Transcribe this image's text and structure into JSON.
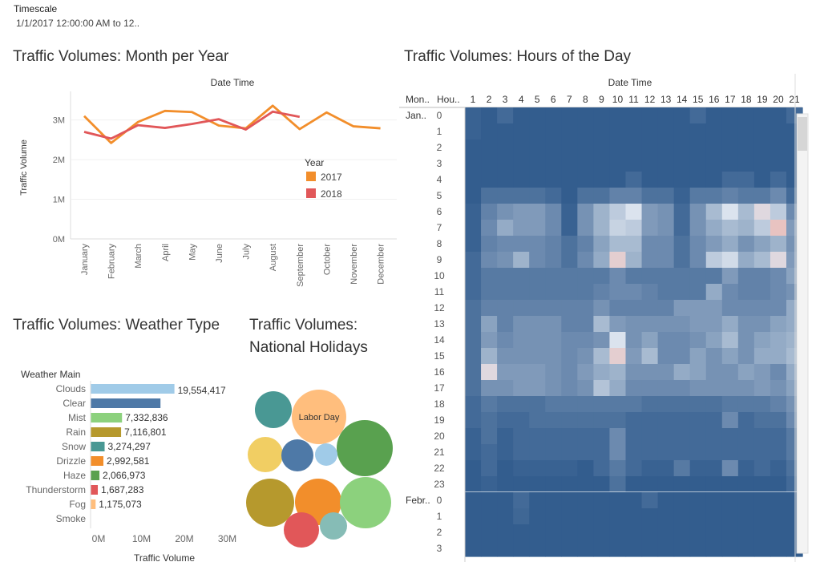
{
  "filter": {
    "title": "Timescale",
    "value": "1/1/2017 12:00:00 AM to 12.."
  },
  "titles": {
    "month": "Traffic Volumes: Month per Year",
    "hours": "Traffic Volumes: Hours of the Day",
    "weather": "Traffic Volumes: Weather Type",
    "holidays": "Traffic Volumes: National Holidays"
  },
  "colors": {
    "y2017": "#f28e2b",
    "y2018": "#e15759",
    "heat_dark": "#2f5a8c",
    "heat_light": "#dbe3ee",
    "heat_hot": "#e8c3c1"
  },
  "chart_data": [
    {
      "id": "month",
      "type": "line",
      "title": "Traffic Volumes: Month per Year",
      "xlabel": "Date Time",
      "ylabel": "Traffic Volume",
      "categories": [
        "January",
        "February",
        "March",
        "April",
        "May",
        "June",
        "July",
        "August",
        "September",
        "October",
        "November",
        "December"
      ],
      "ylim": [
        0,
        3600000
      ],
      "yticks": [
        0,
        1000000,
        2000000,
        3000000
      ],
      "ytick_labels": [
        "0M",
        "1M",
        "2M",
        "3M"
      ],
      "legend_title": "Year",
      "legend_position": "right",
      "series": [
        {
          "name": "2017",
          "color": "#f28e2b",
          "values": [
            3100000,
            2420000,
            2950000,
            3230000,
            3200000,
            2860000,
            2790000,
            3360000,
            2770000,
            3190000,
            2840000,
            2790000
          ]
        },
        {
          "name": "2018",
          "color": "#e15759",
          "values": [
            2700000,
            2530000,
            2870000,
            2800000,
            2900000,
            3020000,
            2760000,
            3210000,
            3080000,
            null,
            null,
            null
          ]
        }
      ]
    },
    {
      "id": "weather",
      "type": "bar",
      "orientation": "horizontal",
      "title": "Traffic Volumes: Weather Type",
      "category_header": "Weather Main",
      "xlabel": "Traffic Volume",
      "xlim": [
        0,
        35000000
      ],
      "xticks": [
        0,
        10000000,
        20000000,
        30000000
      ],
      "xtick_labels": [
        "0M",
        "10M",
        "20M",
        "30M"
      ],
      "categories": [
        "Clouds",
        "Clear",
        "Mist",
        "Rain",
        "Snow",
        "Drizzle",
        "Haze",
        "Thunderstorm",
        "Fog",
        "Smoke"
      ],
      "values": [
        19554417,
        16300000,
        7332836,
        7116801,
        3274297,
        2992581,
        2066973,
        1687283,
        1175073,
        0
      ],
      "labels": [
        "19,554,417",
        "",
        "7,332,836",
        "7,116,801",
        "3,274,297",
        "2,992,581",
        "2,066,973",
        "1,687,283",
        "1,175,073",
        ""
      ],
      "colors": [
        "#a0cbe8",
        "#4e79a7",
        "#8cd17d",
        "#b6992d",
        "#499894",
        "#f28e2b",
        "#59a14f",
        "#e15759",
        "#ffbe7d",
        "#9d7660"
      ]
    },
    {
      "id": "holidays",
      "type": "bubble",
      "title": "Traffic Volumes: National Holidays",
      "bubbles": [
        {
          "label": "Labor Day",
          "color": "#ffbe7d"
        },
        {
          "label": "",
          "color": "#59a14f"
        },
        {
          "label": "",
          "color": "#499894"
        },
        {
          "label": "",
          "color": "#f1ce63"
        },
        {
          "label": "",
          "color": "#4e79a7"
        },
        {
          "label": "",
          "color": "#a0cbe8"
        },
        {
          "label": "",
          "color": "#b6992d"
        },
        {
          "label": "",
          "color": "#f28e2b"
        },
        {
          "label": "",
          "color": "#8cd17d"
        },
        {
          "label": "",
          "color": "#e15759"
        },
        {
          "label": "",
          "color": "#86bcb6"
        }
      ]
    },
    {
      "id": "hours",
      "type": "heatmap",
      "title": "Traffic Volumes: Hours of the Day",
      "column_header": "Date Time",
      "row_headers": [
        "Mon..",
        "Hou.."
      ],
      "columns": [
        "1",
        "2",
        "3",
        "4",
        "5",
        "6",
        "7",
        "8",
        "9",
        "10",
        "11",
        "12",
        "13",
        "14",
        "15",
        "16",
        "17",
        "18",
        "19",
        "20",
        "21"
      ],
      "row_groups": [
        {
          "label": "Jan..",
          "hours": [
            "0",
            "1",
            "2",
            "3",
            "4",
            "5",
            "6",
            "7",
            "8",
            "9",
            "10",
            "11",
            "12",
            "13",
            "14",
            "15",
            "16",
            "17",
            "18",
            "19",
            "20",
            "21",
            "22",
            "23"
          ]
        },
        {
          "label": "Febr..",
          "hours": [
            "0",
            "1",
            "2",
            "3"
          ]
        }
      ],
      "intensity_scale": "0 = lowest traffic (dark blue), 1 = highest (light/pink)",
      "values": [
        [
          0.05,
          0.02,
          0.1,
          0.02,
          0.02,
          0.02,
          0.02,
          0.02,
          0.02,
          0.02,
          0.02,
          0.02,
          0.02,
          0.02,
          0.1,
          0.02,
          0.02,
          0.02,
          0.02,
          0.02,
          0.1
        ],
        [
          0.05,
          0.02,
          0.02,
          0.02,
          0.02,
          0.02,
          0.02,
          0.02,
          0.02,
          0.02,
          0.02,
          0.02,
          0.02,
          0.02,
          0.02,
          0.02,
          0.02,
          0.02,
          0.02,
          0.02,
          0.02
        ],
        [
          0.02,
          0.02,
          0.02,
          0.02,
          0.02,
          0.02,
          0.02,
          0.02,
          0.02,
          0.02,
          0.02,
          0.02,
          0.02,
          0.02,
          0.02,
          0.02,
          0.02,
          0.02,
          0.02,
          0.02,
          0.02
        ],
        [
          0.02,
          0.02,
          0.02,
          0.02,
          0.02,
          0.02,
          0.02,
          0.02,
          0.02,
          0.02,
          0.02,
          0.02,
          0.02,
          0.02,
          0.02,
          0.02,
          0.02,
          0.02,
          0.02,
          0.02,
          0.02
        ],
        [
          0.02,
          0.02,
          0.02,
          0.02,
          0.02,
          0.02,
          0.02,
          0.02,
          0.02,
          0.02,
          0.1,
          0.02,
          0.02,
          0.02,
          0.02,
          0.02,
          0.1,
          0.1,
          0.02,
          0.1,
          0.02
        ],
        [
          0.02,
          0.15,
          0.15,
          0.15,
          0.15,
          0.1,
          0.02,
          0.15,
          0.15,
          0.25,
          0.25,
          0.15,
          0.15,
          0.05,
          0.2,
          0.2,
          0.25,
          0.2,
          0.2,
          0.3,
          0.1
        ],
        [
          0.05,
          0.25,
          0.35,
          0.4,
          0.4,
          0.3,
          0.05,
          0.35,
          0.55,
          0.7,
          0.85,
          0.4,
          0.35,
          0.1,
          0.35,
          0.6,
          0.85,
          0.6,
          0.9,
          0.7,
          0.3
        ],
        [
          0.05,
          0.3,
          0.5,
          0.4,
          0.4,
          0.3,
          0.05,
          0.35,
          0.55,
          0.75,
          0.7,
          0.4,
          0.35,
          0.1,
          0.35,
          0.5,
          0.6,
          0.55,
          0.7,
          1.0,
          0.4
        ],
        [
          0.05,
          0.25,
          0.3,
          0.3,
          0.3,
          0.25,
          0.15,
          0.25,
          0.45,
          0.6,
          0.6,
          0.3,
          0.3,
          0.15,
          0.3,
          0.4,
          0.5,
          0.35,
          0.45,
          0.55,
          0.35
        ],
        [
          0.1,
          0.3,
          0.35,
          0.55,
          0.3,
          0.25,
          0.15,
          0.3,
          0.5,
          0.95,
          0.55,
          0.3,
          0.3,
          0.15,
          0.3,
          0.7,
          0.8,
          0.5,
          0.6,
          0.9,
          0.4
        ],
        [
          0.1,
          0.2,
          0.2,
          0.2,
          0.2,
          0.2,
          0.2,
          0.2,
          0.2,
          0.3,
          0.2,
          0.2,
          0.2,
          0.2,
          0.2,
          0.2,
          0.4,
          0.25,
          0.25,
          0.3,
          0.45
        ],
        [
          0.1,
          0.2,
          0.2,
          0.2,
          0.2,
          0.2,
          0.2,
          0.2,
          0.25,
          0.3,
          0.3,
          0.25,
          0.2,
          0.2,
          0.2,
          0.5,
          0.3,
          0.25,
          0.25,
          0.3,
          0.35
        ],
        [
          0.15,
          0.25,
          0.25,
          0.25,
          0.25,
          0.25,
          0.25,
          0.25,
          0.35,
          0.25,
          0.25,
          0.25,
          0.25,
          0.4,
          0.4,
          0.4,
          0.3,
          0.3,
          0.3,
          0.3,
          0.5
        ],
        [
          0.15,
          0.45,
          0.25,
          0.35,
          0.35,
          0.35,
          0.25,
          0.25,
          0.6,
          0.4,
          0.35,
          0.35,
          0.35,
          0.35,
          0.4,
          0.4,
          0.5,
          0.35,
          0.35,
          0.45,
          0.5
        ],
        [
          0.15,
          0.4,
          0.3,
          0.35,
          0.35,
          0.35,
          0.3,
          0.3,
          0.35,
          0.85,
          0.35,
          0.45,
          0.3,
          0.3,
          0.35,
          0.45,
          0.6,
          0.35,
          0.45,
          0.5,
          0.55
        ],
        [
          0.15,
          0.55,
          0.35,
          0.35,
          0.35,
          0.35,
          0.3,
          0.35,
          0.6,
          0.95,
          0.4,
          0.6,
          0.3,
          0.3,
          0.45,
          0.35,
          0.45,
          0.35,
          0.5,
          0.5,
          0.6
        ],
        [
          0.15,
          0.9,
          0.4,
          0.4,
          0.4,
          0.35,
          0.3,
          0.4,
          0.5,
          0.55,
          0.35,
          0.35,
          0.35,
          0.5,
          0.45,
          0.35,
          0.35,
          0.45,
          0.4,
          0.3,
          0.5
        ],
        [
          0.15,
          0.35,
          0.35,
          0.4,
          0.4,
          0.35,
          0.3,
          0.35,
          0.65,
          0.5,
          0.3,
          0.3,
          0.3,
          0.3,
          0.35,
          0.35,
          0.35,
          0.35,
          0.4,
          0.35,
          0.45
        ],
        [
          0.1,
          0.2,
          0.15,
          0.15,
          0.15,
          0.2,
          0.2,
          0.2,
          0.2,
          0.2,
          0.2,
          0.15,
          0.15,
          0.15,
          0.15,
          0.15,
          0.2,
          0.2,
          0.2,
          0.25,
          0.35
        ],
        [
          0.1,
          0.15,
          0.1,
          0.1,
          0.15,
          0.15,
          0.15,
          0.15,
          0.15,
          0.15,
          0.1,
          0.1,
          0.1,
          0.1,
          0.1,
          0.1,
          0.3,
          0.1,
          0.15,
          0.15,
          0.3
        ],
        [
          0.05,
          0.15,
          0.05,
          0.1,
          0.1,
          0.1,
          0.1,
          0.1,
          0.1,
          0.3,
          0.1,
          0.1,
          0.1,
          0.1,
          0.1,
          0.1,
          0.1,
          0.1,
          0.1,
          0.1,
          0.2
        ],
        [
          0.05,
          0.1,
          0.05,
          0.1,
          0.1,
          0.1,
          0.1,
          0.1,
          0.1,
          0.3,
          0.1,
          0.1,
          0.1,
          0.1,
          0.1,
          0.1,
          0.1,
          0.1,
          0.1,
          0.1,
          0.2
        ],
        [
          0.02,
          0.1,
          0.02,
          0.05,
          0.05,
          0.05,
          0.05,
          0.02,
          0.1,
          0.2,
          0.1,
          0.05,
          0.05,
          0.2,
          0.05,
          0.05,
          0.3,
          0.05,
          0.1,
          0.05,
          0.15
        ],
        [
          0.02,
          0.05,
          0.02,
          0.02,
          0.02,
          0.02,
          0.02,
          0.02,
          0.02,
          0.15,
          0.02,
          0.02,
          0.02,
          0.02,
          0.02,
          0.02,
          0.02,
          0.02,
          0.02,
          0.02,
          0.1
        ],
        [
          0.02,
          0.02,
          0.02,
          0.1,
          0.02,
          0.02,
          0.02,
          0.02,
          0.02,
          0.02,
          0.02,
          0.1,
          0.02,
          0.02,
          0.02,
          0.02,
          0.02,
          0.02,
          0.02,
          0.02,
          0.02
        ],
        [
          0.02,
          0.02,
          0.02,
          0.08,
          0.02,
          0.02,
          0.02,
          0.02,
          0.02,
          0.02,
          0.02,
          0.02,
          0.02,
          0.02,
          0.02,
          0.02,
          0.02,
          0.02,
          0.02,
          0.02,
          0.02
        ],
        [
          0.02,
          0.02,
          0.02,
          0.02,
          0.02,
          0.02,
          0.02,
          0.02,
          0.02,
          0.02,
          0.02,
          0.02,
          0.02,
          0.02,
          0.02,
          0.02,
          0.02,
          0.02,
          0.02,
          0.02,
          0.02
        ],
        [
          0.02,
          0.02,
          0.02,
          0.02,
          0.02,
          0.02,
          0.02,
          0.02,
          0.02,
          0.02,
          0.02,
          0.02,
          0.02,
          0.02,
          0.02,
          0.02,
          0.02,
          0.02,
          0.02,
          0.02,
          0.02
        ]
      ]
    }
  ]
}
